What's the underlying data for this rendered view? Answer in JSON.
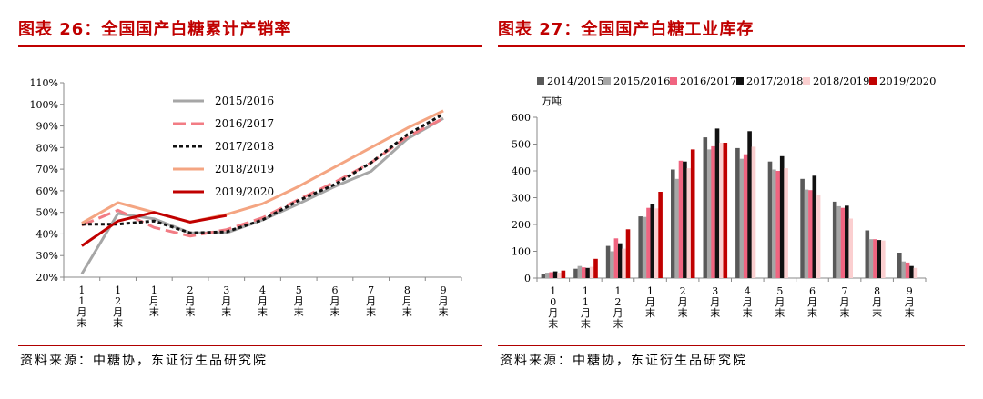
{
  "chart_data": [
    {
      "type": "line",
      "title": "图表 26：全国国产白糖累计产销率",
      "source": "资料来源：中糖协，东证衍生品研究院",
      "categories": [
        "11月末",
        "12月末",
        "1月末",
        "2月末",
        "3月末",
        "4月末",
        "5月末",
        "6月末",
        "7月末",
        "8月末",
        "9月末"
      ],
      "ylim": [
        20,
        110
      ],
      "yticks": [
        "20%",
        "30%",
        "40%",
        "50%",
        "60%",
        "70%",
        "80%",
        "90%",
        "100%",
        "110%"
      ],
      "legend_position": "inside-top-center",
      "series": [
        {
          "name": "2015/2016",
          "color": "#a6a6a6",
          "dash": "solid",
          "values": [
            21.5,
            49.5,
            47,
            40.5,
            40.5,
            46.5,
            54,
            62,
            69,
            84,
            93.5
          ]
        },
        {
          "name": "2016/2017",
          "color": "#f27c84",
          "dash": "long-dash",
          "values": [
            44,
            51,
            43,
            39,
            42,
            47.5,
            56,
            64,
            73,
            85,
            93.5
          ]
        },
        {
          "name": "2017/2018",
          "color": "#111111",
          "dash": "dotted",
          "values": [
            44.5,
            44.5,
            46,
            40.5,
            41,
            46.5,
            55.5,
            63,
            73,
            86,
            95.5
          ]
        },
        {
          "name": "2018/2019",
          "color": "#f4a582",
          "dash": "solid",
          "values": [
            45,
            54.5,
            50,
            45.5,
            49,
            54,
            62,
            71,
            80,
            89,
            97
          ]
        },
        {
          "name": "2019/2020",
          "color": "#c00000",
          "dash": "solid",
          "values": [
            34.5,
            46,
            50,
            45.5,
            48.5,
            null,
            null,
            null,
            null,
            null,
            null
          ]
        }
      ]
    },
    {
      "type": "bar",
      "title": "图表 27：全国国产白糖工业库存",
      "source": "资料来源：中糖协，东证衍生品研究院",
      "unit": "万吨",
      "categories": [
        "10月末",
        "11月末",
        "12月末",
        "1月末",
        "2月末",
        "3月末",
        "4月末",
        "5月末",
        "6月末",
        "7月末",
        "8月末",
        "9月末"
      ],
      "ylim": [
        0,
        600
      ],
      "yticks": [
        "0",
        "100",
        "200",
        "300",
        "400",
        "500",
        "600"
      ],
      "legend_position": "top",
      "series": [
        {
          "name": "2014/2015",
          "color": "#595959",
          "values": [
            15,
            35,
            120,
            230,
            405,
            525,
            485,
            435,
            370,
            285,
            178,
            95
          ]
        },
        {
          "name": "2015/2016",
          "color": "#a6a6a6",
          "values": [
            20,
            45,
            100,
            228,
            370,
            480,
            445,
            405,
            330,
            268,
            145,
            62
          ]
        },
        {
          "name": "2016/2017",
          "color": "#f06480",
          "values": [
            22,
            40,
            148,
            262,
            438,
            492,
            462,
            400,
            328,
            262,
            145,
            58
          ]
        },
        {
          "name": "2017/2018",
          "color": "#111111",
          "values": [
            25,
            38,
            130,
            275,
            435,
            558,
            548,
            455,
            382,
            270,
            142,
            45
          ]
        },
        {
          "name": "2018/2019",
          "color": "#fbcfd0",
          "values": [
            20,
            42,
            110,
            260,
            410,
            505,
            490,
            410,
            310,
            222,
            140,
            38
          ]
        },
        {
          "name": "2019/2020",
          "color": "#c00000",
          "values": [
            28,
            72,
            182,
            322,
            480,
            505,
            null,
            null,
            null,
            null,
            null,
            null
          ]
        }
      ]
    }
  ]
}
